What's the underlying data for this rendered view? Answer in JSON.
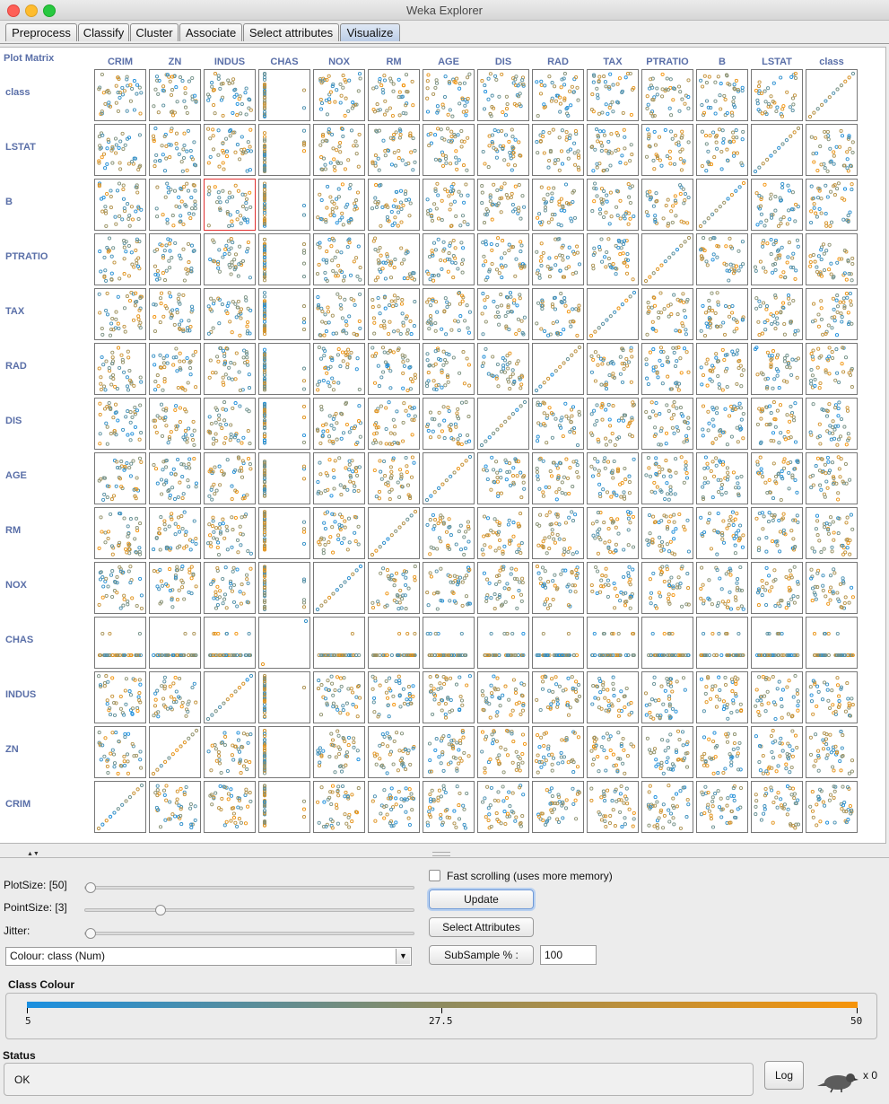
{
  "window": {
    "title": "Weka Explorer"
  },
  "tabs": [
    {
      "label": "Preprocess"
    },
    {
      "label": "Classify"
    },
    {
      "label": "Cluster"
    },
    {
      "label": "Associate"
    },
    {
      "label": "Select attributes"
    },
    {
      "label": "Visualize"
    }
  ],
  "active_tab": "Visualize",
  "plot_matrix": {
    "corner_label": "Plot Matrix",
    "columns": [
      "CRIM",
      "ZN",
      "INDUS",
      "CHAS",
      "NOX",
      "RM",
      "AGE",
      "DIS",
      "RAD",
      "TAX",
      "PTRATIO",
      "B",
      "LSTAT",
      "class"
    ],
    "rows": [
      "class",
      "LSTAT",
      "B",
      "PTRATIO",
      "TAX",
      "RAD",
      "DIS",
      "AGE",
      "RM",
      "NOX",
      "CHAS",
      "INDUS",
      "ZN",
      "CRIM"
    ],
    "selected_cell": {
      "row": "B",
      "column": "INDUS"
    }
  },
  "controls": {
    "plot_size_label": "PlotSize: [50]",
    "point_size_label": "PointSize: [3]",
    "jitter_label": "Jitter:",
    "plot_size_level": 0.0,
    "point_size_level": 0.22,
    "jitter_level": 0.0,
    "fast_scrolling_label": "Fast scrolling (uses more memory)",
    "fast_scrolling_checked": false,
    "update_label": "Update",
    "select_attributes_label": "Select Attributes",
    "subsample_label": "SubSample % :",
    "subsample_value": "100",
    "colour_select_value": "Colour: class  (Num)"
  },
  "class_colour": {
    "title": "Class Colour",
    "min_label": "5",
    "mid_label": "27.5",
    "max_label": "50",
    "color_low": "#1a8fe0",
    "color_high": "#f6940a"
  },
  "status": {
    "title": "Status",
    "message": "OK",
    "log_label": "Log",
    "task_count": "x 0"
  },
  "colors": {
    "label_blue": "#5a6fa8",
    "selected_border": "#e03030"
  }
}
